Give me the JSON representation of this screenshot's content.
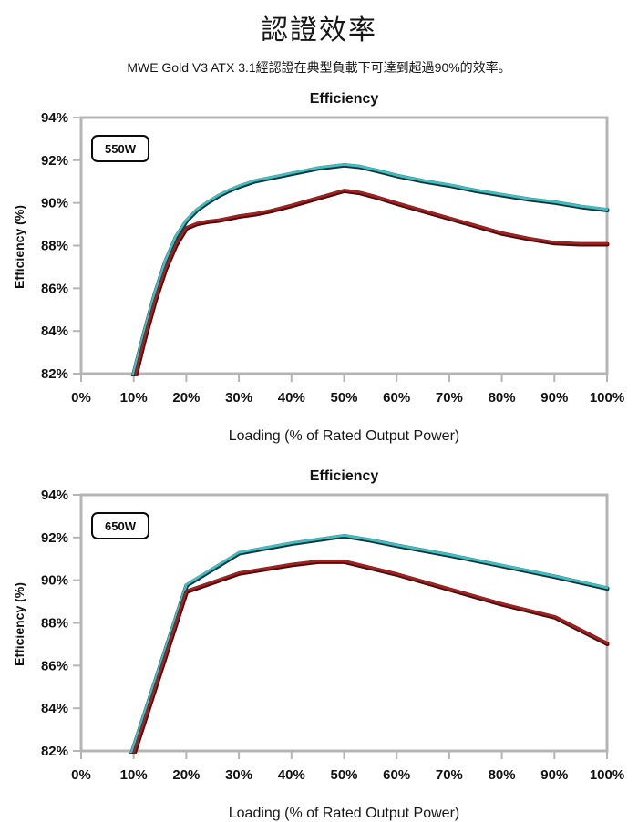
{
  "page": {
    "title": "認證效率",
    "subtitle": "MWE Gold V3 ATX 3.1經認證在典型負載下可達到超過90%的效率。"
  },
  "colors": {
    "teal_line": "#3fbfc0",
    "teal_edge": "#11333c",
    "red_line": "#a12121",
    "red_edge": "#4a0c0c",
    "axis": "#b5b5b5",
    "text": "#111111"
  },
  "chart_data": [
    {
      "type": "line",
      "title": "Efficiency",
      "legend_label": "550W",
      "xlabel": "Loading (% of Rated Output Power)",
      "ylabel": "Efficiency (%)",
      "xlim": [
        0,
        100
      ],
      "ylim": [
        82,
        94
      ],
      "grid": false,
      "legend_position": "top-left-inside",
      "xticks": [
        0,
        10,
        20,
        30,
        40,
        50,
        60,
        70,
        80,
        90,
        100
      ],
      "xtick_labels": [
        "0%",
        "10%",
        "20%",
        "30%",
        "40%",
        "50%",
        "60%",
        "70%",
        "80%",
        "90%",
        "100%"
      ],
      "yticks": [
        82,
        84,
        86,
        88,
        90,
        92,
        94
      ],
      "ytick_labels": [
        "82%",
        "84%",
        "86%",
        "88%",
        "90%",
        "92%",
        "94%"
      ],
      "series": [
        {
          "name": "teal-line",
          "color": "teal",
          "x": [
            9.7,
            12,
            14,
            16,
            18,
            20,
            22,
            24,
            26,
            28,
            30,
            33,
            36,
            40,
            45,
            50,
            53,
            56,
            60,
            65,
            70,
            75,
            80,
            85,
            90,
            95,
            100
          ],
          "y": [
            81.8,
            84.0,
            85.8,
            87.3,
            88.45,
            89.2,
            89.7,
            90.05,
            90.35,
            90.6,
            90.8,
            91.05,
            91.2,
            91.4,
            91.65,
            91.8,
            91.72,
            91.55,
            91.3,
            91.05,
            90.85,
            90.6,
            90.4,
            90.2,
            90.05,
            89.85,
            89.7
          ]
        },
        {
          "name": "red-line",
          "color": "red",
          "x": [
            10.2,
            12,
            14,
            16,
            18,
            20,
            22,
            24,
            26,
            28,
            30,
            33,
            36,
            40,
            45,
            50,
            53,
            56,
            60,
            65,
            70,
            75,
            80,
            85,
            90,
            95,
            100
          ],
          "y": [
            81.8,
            83.6,
            85.4,
            86.9,
            88.05,
            88.85,
            89.05,
            89.15,
            89.2,
            89.3,
            89.4,
            89.5,
            89.65,
            89.9,
            90.25,
            90.6,
            90.5,
            90.3,
            90.0,
            89.65,
            89.3,
            88.95,
            88.6,
            88.35,
            88.15,
            88.1,
            88.1
          ]
        }
      ]
    },
    {
      "type": "line",
      "title": "Efficiency",
      "legend_label": "650W",
      "xlabel": "Loading (% of Rated Output Power)",
      "ylabel": "Efficiency (%)",
      "xlim": [
        0,
        100
      ],
      "ylim": [
        82,
        94
      ],
      "grid": false,
      "legend_position": "top-left-inside",
      "xticks": [
        0,
        10,
        20,
        30,
        40,
        50,
        60,
        70,
        80,
        90,
        100
      ],
      "xtick_labels": [
        "0%",
        "10%",
        "20%",
        "30%",
        "40%",
        "50%",
        "60%",
        "70%",
        "80%",
        "90%",
        "100%"
      ],
      "yticks": [
        82,
        84,
        86,
        88,
        90,
        92,
        94
      ],
      "ytick_labels": [
        "82%",
        "84%",
        "86%",
        "88%",
        "90%",
        "92%",
        "94%"
      ],
      "series": [
        {
          "name": "teal-line",
          "color": "teal",
          "x": [
            9.4,
            20,
            30,
            40,
            50,
            55,
            60,
            70,
            80,
            90,
            100
          ],
          "y": [
            81.8,
            89.8,
            91.3,
            91.75,
            92.1,
            91.9,
            91.65,
            91.2,
            90.7,
            90.2,
            89.65
          ]
        },
        {
          "name": "red-line",
          "color": "red",
          "x": [
            9.9,
            20,
            30,
            40,
            45,
            50,
            60,
            70,
            80,
            90,
            100
          ],
          "y": [
            81.8,
            89.5,
            90.35,
            90.75,
            90.9,
            90.9,
            90.3,
            89.6,
            88.9,
            88.3,
            87.05
          ]
        }
      ]
    }
  ]
}
